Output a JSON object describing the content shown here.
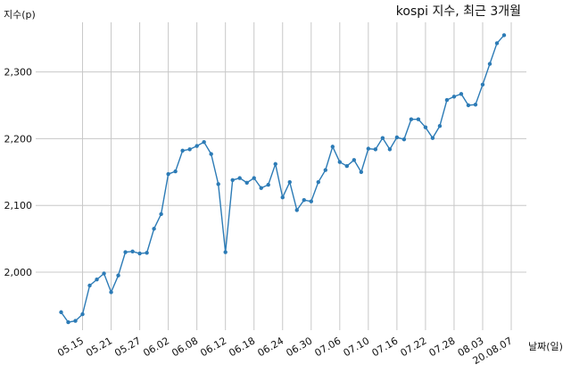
{
  "chart_data": {
    "type": "line",
    "title": "kospi 지수, 최근 3개월",
    "xlabel": "날짜(일)",
    "ylabel": "지수(p)",
    "grid": true,
    "ylim": [
      1900,
      2400
    ],
    "yticks": [
      2000,
      2100,
      2200,
      2300
    ],
    "ytick_labels": [
      "2,000",
      "2,100",
      "2,200",
      "2,300"
    ],
    "xtick_index": [
      3,
      7,
      11,
      15,
      19,
      23,
      27,
      31,
      35,
      39,
      43,
      47,
      51,
      55,
      59,
      63
    ],
    "xtick_labels": [
      "05.15",
      "05.21",
      "05.27",
      "06.02",
      "06.08",
      "06.12",
      "06.18",
      "06.24",
      "06.30",
      "07.06",
      "07.10",
      "07.16",
      "07.22",
      "07.28",
      "08.03",
      "20.08.07"
    ],
    "line_color": "#2c7bb6",
    "series": [
      {
        "values": [
          1940,
          1925,
          1927,
          1937,
          1980,
          1989,
          1998,
          1970,
          1995,
          2030,
          2031,
          2028,
          2029,
          2065,
          2087,
          2147,
          2151,
          2182,
          2184,
          2189,
          2195,
          2177,
          2132,
          2030,
          2138,
          2141,
          2134,
          2141,
          2126,
          2131,
          2162,
          2112,
          2135,
          2093,
          2108,
          2106,
          2135,
          2153,
          2188,
          2165,
          2159,
          2168,
          2150,
          2185,
          2184,
          2201,
          2184,
          2202,
          2199,
          2229,
          2229,
          2217,
          2201,
          2219,
          2258,
          2263,
          2267,
          2250,
          2251,
          2281,
          2312,
          2343,
          2355
        ]
      }
    ]
  }
}
